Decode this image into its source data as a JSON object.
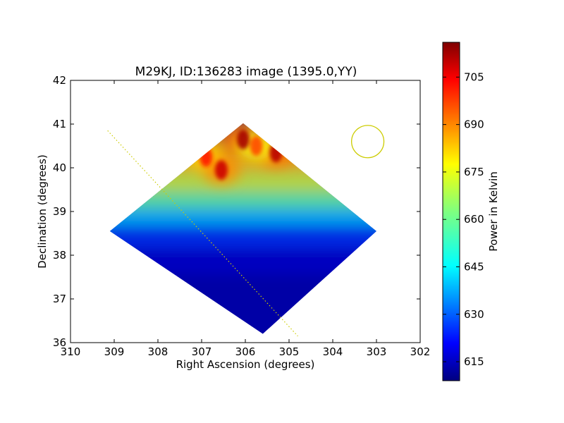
{
  "chart_data": {
    "type": "heatmap",
    "title": "M29KJ, ID:136283 image (1395.0,YY)",
    "xlabel": "Right Ascension (degrees)",
    "ylabel": "Declination (degrees)",
    "xlim": [
      310,
      302
    ],
    "ylim": [
      36,
      42
    ],
    "x_ticks": [
      310,
      309,
      308,
      307,
      306,
      305,
      304,
      303,
      302
    ],
    "y_ticks": [
      36,
      37,
      38,
      39,
      40,
      41,
      42
    ],
    "colorbar": {
      "label": "Power in Kelvin",
      "range": [
        609,
        716
      ],
      "ticks": [
        615,
        630,
        645,
        660,
        675,
        690,
        705
      ],
      "colormap": "jet"
    },
    "footprint": {
      "shape": "diamond",
      "top": [
        306.05,
        41.02
      ],
      "bottom": [
        305.6,
        36.2
      ],
      "left": [
        309.1,
        38.55
      ],
      "right": [
        303.0,
        38.55
      ],
      "background_value": 613
    },
    "hot_spots": [
      {
        "ra": 306.9,
        "dec": 40.25,
        "value": 700
      },
      {
        "ra": 306.55,
        "dec": 39.95,
        "value": 708
      },
      {
        "ra": 306.05,
        "dec": 40.65,
        "value": 712
      },
      {
        "ra": 305.3,
        "dec": 40.35,
        "value": 710
      },
      {
        "ra": 305.75,
        "dec": 40.5,
        "value": 695
      }
    ],
    "beam_circle": {
      "ra": 303.2,
      "dec": 40.6,
      "radius_deg": 0.37,
      "color": "#cccc00"
    },
    "galactic_plane_line": {
      "points": [
        [
          309.15,
          40.85
        ],
        [
          304.8,
          36.15
        ]
      ],
      "color": "#cccc00"
    }
  }
}
